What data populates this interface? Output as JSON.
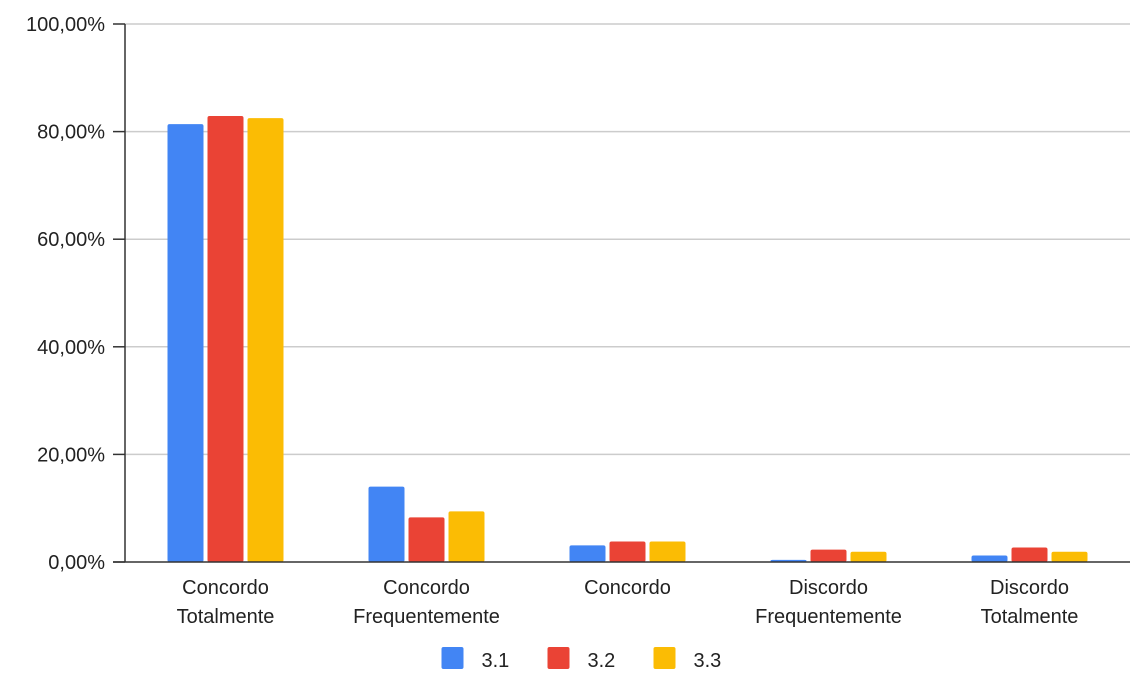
{
  "chart_data": {
    "type": "bar",
    "categories": [
      [
        "Concordo",
        "Totalmente"
      ],
      [
        "Concordo",
        "Frequentemente"
      ],
      [
        "Concordo"
      ],
      [
        "Discordo",
        "Frequentemente"
      ],
      [
        "Discordo",
        "Totalmente"
      ]
    ],
    "series": [
      {
        "name": "3.1",
        "color": "#4285F4",
        "values": [
          81.4,
          14.0,
          3.1,
          0.4,
          1.2
        ]
      },
      {
        "name": "3.2",
        "color": "#EA4335",
        "values": [
          82.9,
          8.3,
          3.8,
          2.3,
          2.7
        ]
      },
      {
        "name": "3.3",
        "color": "#FBBC04",
        "values": [
          82.5,
          9.4,
          3.8,
          1.9,
          1.9
        ]
      }
    ],
    "y_ticks": [
      "0,00%",
      "20,00%",
      "40,00%",
      "60,00%",
      "80,00%",
      "100,00%"
    ],
    "ylim": [
      0,
      100
    ],
    "grid": true,
    "legend_position": "bottom",
    "gridline_color": "#cccccc",
    "axis_color": "#333333"
  }
}
